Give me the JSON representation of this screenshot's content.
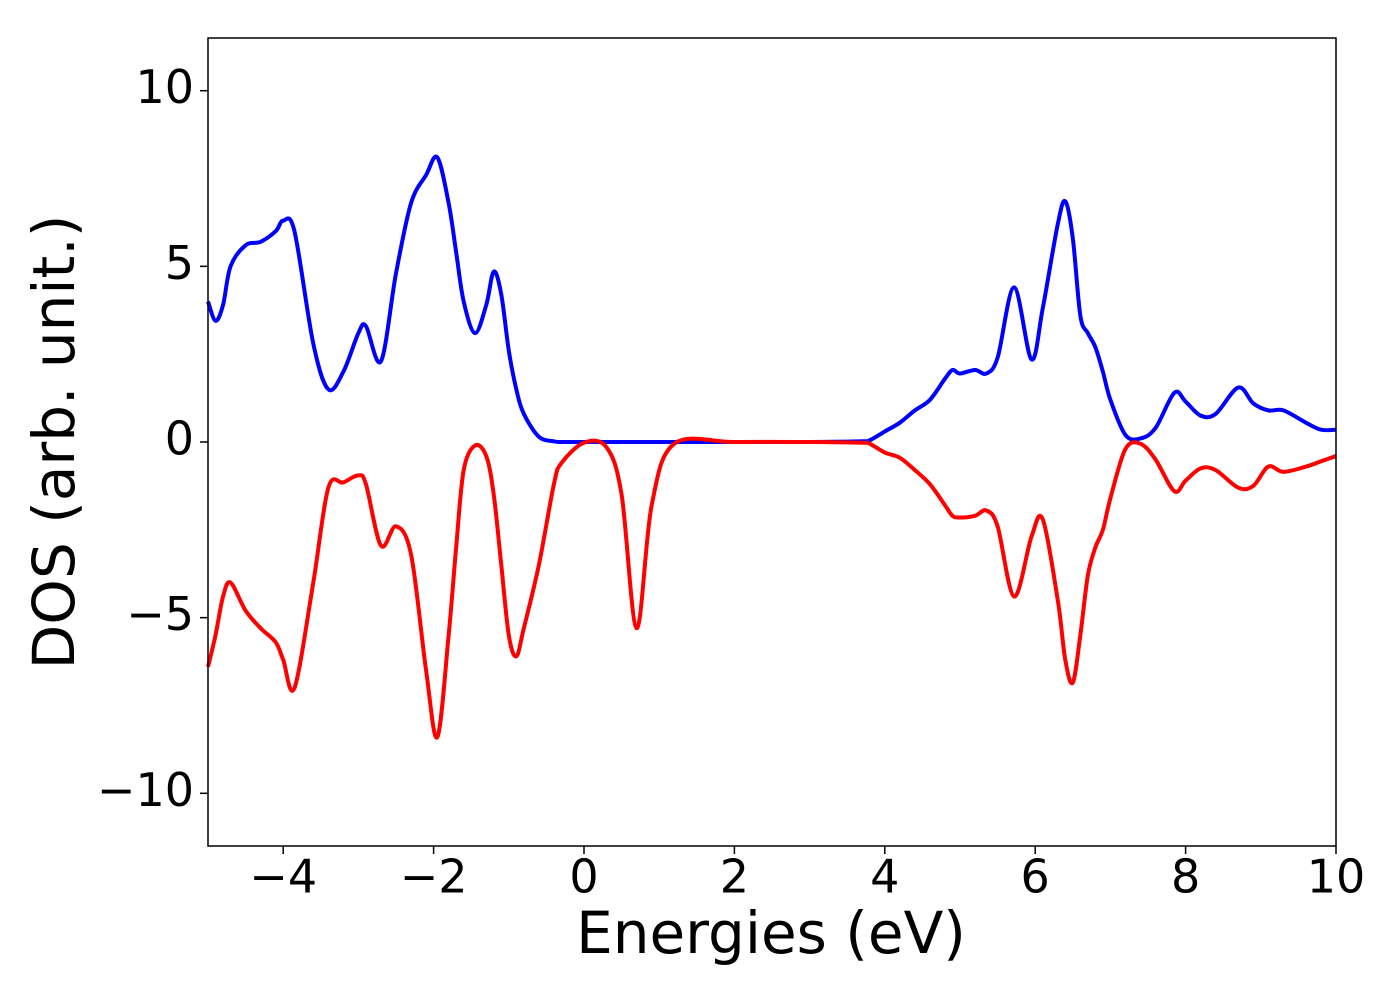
{
  "chart_data": {
    "type": "line",
    "xlabel": "Energies (eV)",
    "ylabel": "DOS (arb. unit.)",
    "xlim": [
      -5,
      10
    ],
    "ylim": [
      -11.5,
      11.5
    ],
    "xticks": [
      {
        "value": -4,
        "label": "−4"
      },
      {
        "value": -2,
        "label": "−2"
      },
      0,
      2,
      4,
      6,
      8,
      10
    ],
    "yticks": [
      {
        "value": -10,
        "label": "−10"
      },
      {
        "value": -5,
        "label": "−5"
      },
      0,
      5,
      10
    ],
    "grid": false,
    "x": [
      -5,
      -4.9,
      -4.8,
      -4.7,
      -4.5,
      -4.3,
      -4.1,
      -4.0,
      -3.85,
      -3.6,
      -3.4,
      -3.2,
      -3.0,
      -2.9,
      -2.7,
      -2.5,
      -2.3,
      -2.1,
      -1.95,
      -1.8,
      -1.7,
      -1.6,
      -1.45,
      -1.3,
      -1.2,
      -1.1,
      -1.0,
      -0.9,
      -0.8,
      -0.6,
      -0.4,
      -0.3,
      0,
      0.3,
      0.5,
      0.7,
      0.9,
      1.2,
      2,
      3,
      3.7,
      3.8,
      4.0,
      4.2,
      4.4,
      4.6,
      4.8,
      4.9,
      5.0,
      5.2,
      5.35,
      5.5,
      5.72,
      5.95,
      6.1,
      6.3,
      6.4,
      6.5,
      6.6,
      6.7,
      6.8,
      6.9,
      7.0,
      7.2,
      7.4,
      7.6,
      7.85,
      8.0,
      8.2,
      8.4,
      8.7,
      8.9,
      9.1,
      9.3,
      9.6,
      9.8,
      10
    ],
    "series": [
      {
        "color": "#0000ff",
        "values": [
          4.0,
          3.45,
          3.9,
          5.0,
          5.6,
          5.7,
          6.0,
          6.3,
          6.0,
          2.8,
          1.5,
          2.0,
          3.1,
          3.3,
          2.3,
          4.8,
          6.8,
          7.6,
          8.1,
          6.8,
          5.4,
          4.0,
          3.1,
          3.9,
          4.85,
          4.2,
          2.6,
          1.5,
          0.8,
          0.15,
          0.02,
          0,
          0,
          0,
          0,
          0,
          0,
          0,
          0,
          0,
          0.02,
          0.05,
          0.3,
          0.55,
          0.9,
          1.2,
          1.8,
          2.05,
          1.95,
          2.05,
          1.95,
          2.4,
          4.4,
          2.35,
          3.8,
          6.2,
          6.85,
          5.8,
          3.6,
          3.1,
          2.7,
          2.0,
          1.2,
          0.2,
          0.1,
          0.4,
          1.4,
          1.15,
          0.75,
          0.8,
          1.55,
          1.1,
          0.9,
          0.9,
          0.55,
          0.35,
          0.35
        ]
      },
      {
        "color": "#ff0000",
        "values": [
          -6.4,
          -5.5,
          -4.4,
          -4.0,
          -4.8,
          -5.3,
          -5.7,
          -6.2,
          -7.0,
          -4.0,
          -1.3,
          -1.15,
          -0.95,
          -1.2,
          -2.95,
          -2.4,
          -3.2,
          -6.5,
          -8.4,
          -5.5,
          -3.0,
          -0.8,
          -0.1,
          -0.4,
          -1.5,
          -3.5,
          -5.5,
          -6.1,
          -5.3,
          -3.5,
          -1.2,
          -0.6,
          -0.02,
          -0.15,
          -1.5,
          -5.3,
          -1.8,
          -0.05,
          0,
          0,
          -0.02,
          -0.05,
          -0.3,
          -0.45,
          -0.8,
          -1.2,
          -1.8,
          -2.1,
          -2.15,
          -2.1,
          -1.95,
          -2.4,
          -4.4,
          -2.7,
          -2.2,
          -4.5,
          -6.2,
          -6.85,
          -5.5,
          -3.8,
          -3.0,
          -2.5,
          -1.6,
          -0.2,
          -0.05,
          -0.5,
          -1.4,
          -1.1,
          -0.75,
          -0.8,
          -1.3,
          -1.25,
          -0.7,
          -0.85,
          -0.7,
          -0.55,
          -0.4
        ]
      }
    ]
  }
}
